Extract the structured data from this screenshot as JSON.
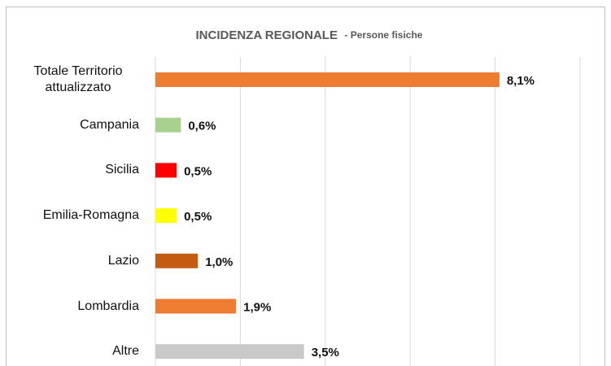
{
  "chart_data": {
    "type": "barh",
    "title": "INCIDENZA REGIONALE",
    "subtitle": "- Persone fisiche",
    "categories": [
      "Totale Territorio attualizzato",
      "Campania",
      "Sicilia",
      "Emilia-Romagna",
      "Lazio",
      "Lombardia",
      "Altre"
    ],
    "values": [
      8.1,
      0.6,
      0.5,
      0.5,
      1.0,
      1.9,
      3.5
    ],
    "value_labels": [
      "8,1%",
      "0,6%",
      "0,5%",
      "0,5%",
      "1,0%",
      "1,9%",
      "3,5%"
    ],
    "colors": [
      "#ed7d31",
      "#a9d18e",
      "#ff0000",
      "#ffff00",
      "#c55a11",
      "#ed7d31",
      "#c9c9c9"
    ],
    "xlim": [
      0,
      10
    ],
    "xticks": [
      0,
      2,
      4,
      6,
      8,
      10
    ],
    "grid": true
  }
}
